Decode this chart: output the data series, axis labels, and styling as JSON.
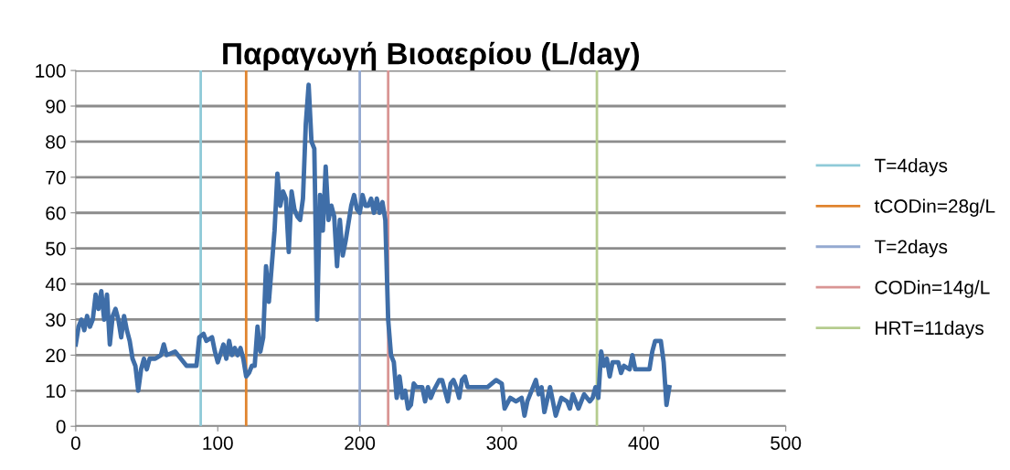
{
  "chart_data": {
    "type": "line",
    "title": "Παραγωγή Βιοαερίου (L/day)",
    "series": [
      {
        "color": "#3f6ea8",
        "x": [
          0,
          2,
          4,
          6,
          8,
          10,
          12,
          14,
          16,
          18,
          20,
          22,
          24,
          26,
          28,
          30,
          32,
          34,
          36,
          38,
          40,
          42,
          44,
          46,
          48,
          50,
          52,
          56,
          60,
          62,
          64,
          70,
          74,
          78,
          85,
          87,
          90,
          92,
          96,
          98,
          100,
          104,
          106,
          108,
          110,
          112,
          114,
          116,
          118,
          120,
          122,
          124,
          126,
          128,
          130,
          132,
          134,
          136,
          138,
          140,
          142,
          144,
          146,
          148,
          150,
          152,
          154,
          156,
          158,
          160,
          162,
          164,
          166,
          168,
          170,
          172,
          174,
          176,
          178,
          180,
          182,
          184,
          186,
          188,
          190,
          192,
          194,
          196,
          198,
          200,
          202,
          204,
          206,
          208,
          210,
          212,
          214,
          216,
          218,
          220,
          222,
          224,
          226,
          228,
          230,
          232,
          234,
          236,
          238,
          240,
          244,
          246,
          248,
          250,
          252,
          256,
          258,
          260,
          262,
          264,
          266,
          268,
          270,
          272,
          274,
          276,
          280,
          290,
          296,
          300,
          302,
          306,
          310,
          314,
          316,
          318,
          320,
          324,
          326,
          328,
          330,
          334,
          338,
          342,
          346,
          348,
          350,
          354,
          358,
          362,
          364,
          366,
          368,
          370,
          372,
          374,
          376,
          378,
          382,
          384,
          386,
          390,
          392,
          394,
          400,
          404,
          406,
          408,
          412,
          414,
          416,
          418
        ],
        "values": [
          23,
          28,
          30,
          27,
          31,
          28,
          30,
          37,
          33,
          38,
          30,
          37,
          23,
          31,
          33,
          30,
          25,
          31,
          27,
          24,
          19,
          17,
          10,
          16,
          19,
          16,
          19,
          19,
          20,
          23,
          20,
          21,
          19,
          17,
          17,
          25,
          26,
          24,
          25,
          21,
          18,
          23,
          19,
          24,
          20,
          22,
          20,
          22,
          19,
          14,
          15,
          17,
          17,
          28,
          21,
          25,
          45,
          35,
          45,
          55,
          71,
          62,
          66,
          64,
          49,
          66,
          61,
          59,
          58,
          64,
          85,
          96,
          80,
          78,
          30,
          65,
          55,
          73,
          58,
          62,
          59,
          45,
          58,
          48,
          52,
          57,
          62,
          65,
          61,
          60,
          65,
          62,
          62,
          64,
          60,
          64,
          60,
          63,
          58,
          30,
          20,
          18,
          8,
          14,
          8,
          10,
          5,
          6,
          12,
          11,
          11,
          7,
          11,
          8,
          10,
          13,
          13,
          10,
          7,
          12,
          13,
          11,
          8,
          13,
          14,
          11,
          11,
          11,
          13,
          12,
          5,
          8,
          7,
          8,
          3,
          7,
          9,
          13,
          9,
          11,
          4,
          11,
          3,
          8,
          7,
          5,
          9,
          5,
          9,
          7,
          8,
          11,
          8,
          21,
          17,
          19,
          14,
          18,
          18,
          15,
          17,
          16,
          20,
          16,
          16,
          16,
          21,
          24,
          24,
          18,
          6,
          11
        ]
      },
      {
        "name": "T=4days",
        "color": "#8fcad8",
        "x": [
          88,
          88
        ],
        "values": [
          0,
          100
        ]
      },
      {
        "name": "tCODin=28g/L",
        "color": "#e0842f",
        "x": [
          120,
          120
        ],
        "values": [
          0,
          100
        ]
      },
      {
        "name": "T=2days",
        "color": "#94a9d1",
        "x": [
          200,
          200
        ],
        "values": [
          0,
          100
        ]
      },
      {
        "name": "CODin=14g/L",
        "color": "#d99594",
        "x": [
          220,
          220
        ],
        "values": [
          0,
          100
        ]
      },
      {
        "name": "HRT=11days",
        "color": "#b5cc8e",
        "x": [
          367,
          367
        ],
        "values": [
          0,
          100
        ]
      }
    ],
    "xlim": [
      0,
      500
    ],
    "xticks": [
      0,
      100,
      200,
      300,
      400,
      500
    ],
    "ylim": [
      0,
      100
    ],
    "yticks": [
      0,
      10,
      20,
      30,
      40,
      50,
      60,
      70,
      80,
      90,
      100
    ],
    "grid": "y",
    "legend": "right"
  }
}
